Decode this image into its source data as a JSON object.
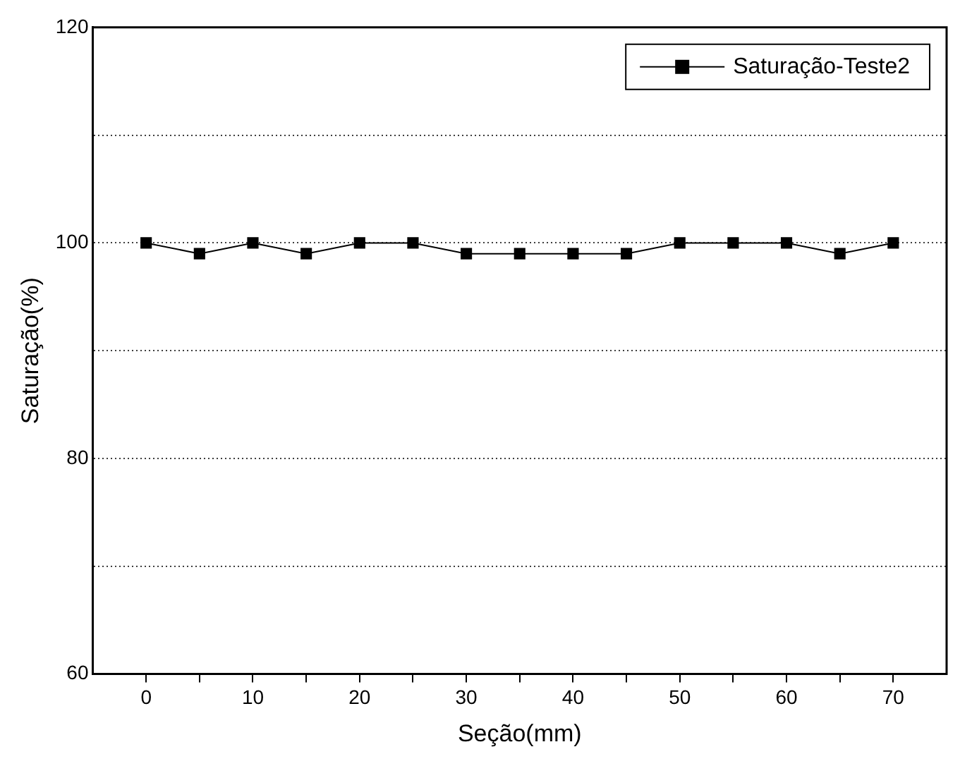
{
  "chart_data": {
    "type": "line",
    "xlabel": "Seção(mm)",
    "ylabel": "Saturação(%)",
    "x": [
      0,
      5,
      10,
      15,
      20,
      25,
      30,
      35,
      40,
      45,
      50,
      55,
      60,
      65,
      70
    ],
    "series": [
      {
        "name": "Saturação-Teste2",
        "color": "#000000",
        "values": [
          100,
          99,
          100,
          99,
          100,
          100,
          99,
          99,
          99,
          99,
          100,
          100,
          100,
          99,
          100
        ]
      }
    ],
    "xlim": [
      -5,
      75
    ],
    "xticks": [
      0,
      {
        "value": 5,
        "label": null
      },
      10,
      {
        "value": 15,
        "label": null
      },
      20,
      {
        "value": 25,
        "label": null
      },
      30,
      {
        "value": 35,
        "label": null
      },
      40,
      {
        "value": 45,
        "label": null
      },
      50,
      {
        "value": 55,
        "label": null
      },
      60,
      {
        "value": 65,
        "label": null
      },
      70
    ],
    "ylim": [
      60,
      120
    ],
    "yticks": [
      60,
      {
        "value": 70,
        "label": null
      },
      80,
      {
        "value": 90,
        "label": null
      },
      100,
      {
        "value": 110,
        "label": null
      },
      120
    ],
    "grid": "y",
    "legend": "top right",
    "marker": "square",
    "line_style": "solid"
  }
}
